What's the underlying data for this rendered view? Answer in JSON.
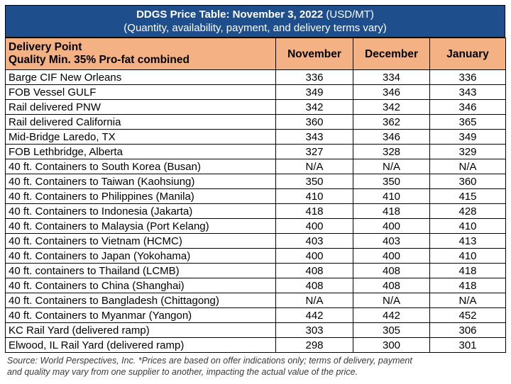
{
  "title": {
    "bold": "DDGS Price Table: November 3, 2022",
    "unit": "(USD/MT)",
    "subtitle": "(Quantity, availability, payment, and delivery terms vary)"
  },
  "header": {
    "col1_line1": "Delivery Point",
    "col1_line2": "Quality Min. 35% Pro-fat combined",
    "months": [
      "November",
      "December",
      "January"
    ]
  },
  "rows": [
    {
      "point": "Barge CIF New Orleans",
      "nov": "336",
      "dec": "334",
      "jan": "336"
    },
    {
      "point": "FOB Vessel GULF",
      "nov": "349",
      "dec": "346",
      "jan": "343"
    },
    {
      "point": "Rail delivered PNW",
      "nov": "342",
      "dec": "342",
      "jan": "346"
    },
    {
      "point": "Rail delivered California",
      "nov": "360",
      "dec": "362",
      "jan": "365"
    },
    {
      "point": "Mid-Bridge Laredo, TX",
      "nov": "343",
      "dec": "346",
      "jan": "349"
    },
    {
      "point": "FOB Lethbridge, Alberta",
      "nov": "327",
      "dec": "328",
      "jan": "329"
    },
    {
      "point": "40 ft. Containers to South Korea (Busan)",
      "nov": "N/A",
      "dec": "N/A",
      "jan": "N/A"
    },
    {
      "point": "40 ft. Containers to Taiwan (Kaohsiung)",
      "nov": "350",
      "dec": "350",
      "jan": "360"
    },
    {
      "point": "40 ft. Containers to Philippines (Manila)",
      "nov": "410",
      "dec": "410",
      "jan": "415"
    },
    {
      "point": "40 ft. Containers to Indonesia (Jakarta)",
      "nov": "418",
      "dec": "418",
      "jan": "428"
    },
    {
      "point": "40 ft. Containers to Malaysia (Port Kelang)",
      "nov": "400",
      "dec": "400",
      "jan": "410"
    },
    {
      "point": "40 ft. Containers to Vietnam (HCMC)",
      "nov": "403",
      "dec": "403",
      "jan": "413"
    },
    {
      "point": "40 ft. Containers to Japan (Yokohama)",
      "nov": "400",
      "dec": "400",
      "jan": "410"
    },
    {
      "point": "40 ft. containers to Thailand (LCMB)",
      "nov": "408",
      "dec": "408",
      "jan": "418"
    },
    {
      "point": "40 ft. Containers to China (Shanghai)",
      "nov": "408",
      "dec": "408",
      "jan": "418"
    },
    {
      "point": "40 ft. Containers to Bangladesh (Chittagong)",
      "nov": "N/A",
      "dec": "N/A",
      "jan": "N/A"
    },
    {
      "point": "40 ft. Containers to Myanmar (Yangon)",
      "nov": "442",
      "dec": "442",
      "jan": "452"
    },
    {
      "point": "KC Rail Yard (delivered ramp)",
      "nov": "303",
      "dec": "305",
      "jan": "306"
    },
    {
      "point": "Elwood, IL Rail Yard (delivered ramp)",
      "nov": "298",
      "dec": "300",
      "jan": "301"
    }
  ],
  "footnote": {
    "line1": "Source: World Perspectives, Inc. *Prices are based on offer indications only; terms of delivery, payment",
    "line2": "and quality may vary from one supplier to another, impacting the actual value of the price."
  },
  "colors": {
    "title_bg": "#1f4e8c",
    "header_bg": "#f4b183"
  }
}
